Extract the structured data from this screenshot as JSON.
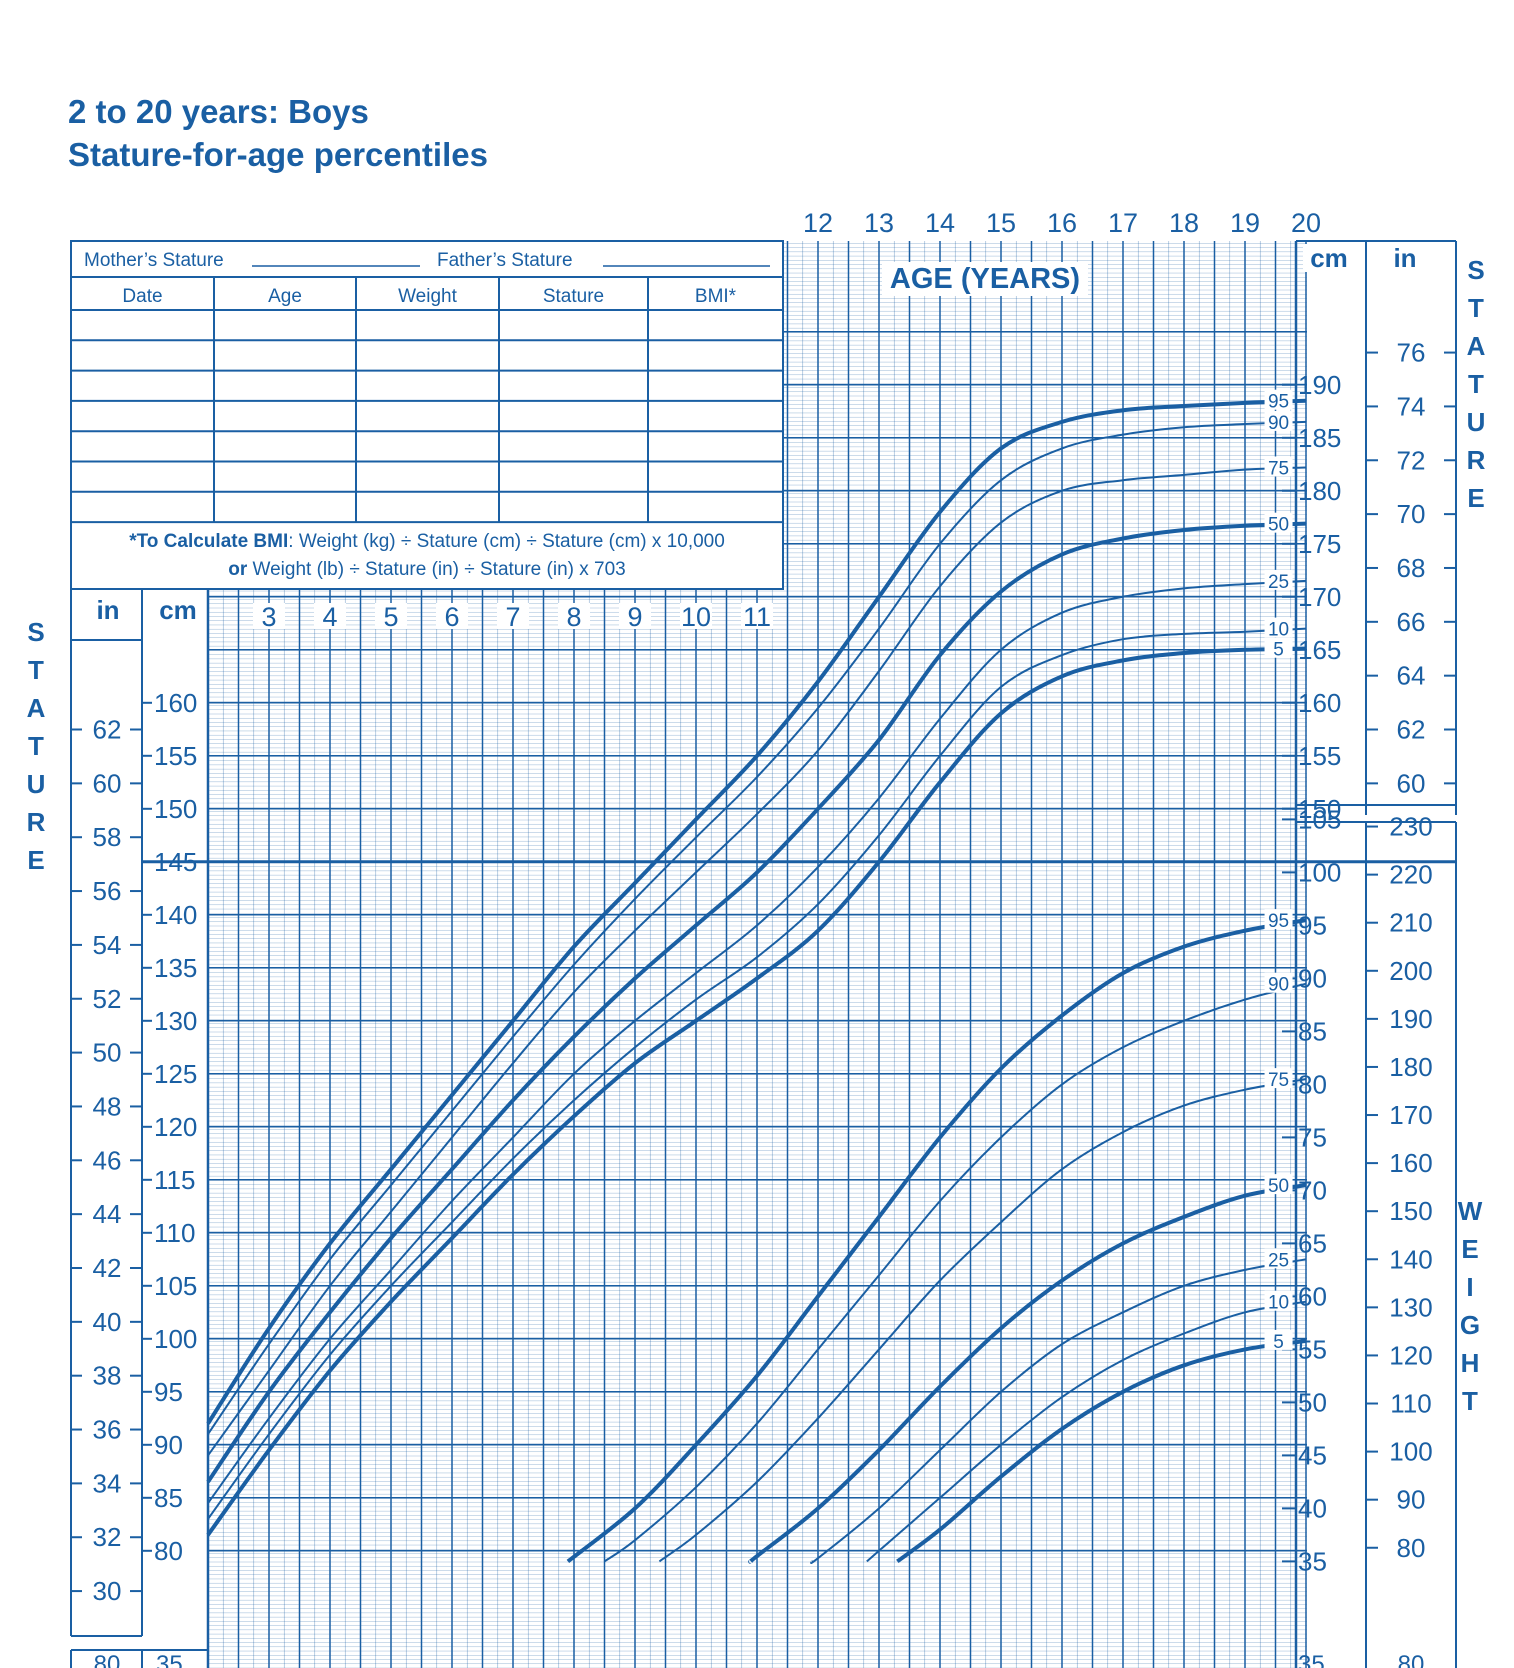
{
  "colors": {
    "primary": "#1a5fa3",
    "background": "#ffffff"
  },
  "title": {
    "line1": "2 to 20 years: Boys",
    "line2": "Stature-for-age percentiles"
  },
  "record_table": {
    "mothers_stature_label": "Mother’s Stature",
    "fathers_stature_label": "Father’s Stature",
    "columns": [
      "Date",
      "Age",
      "Weight",
      "Stature",
      "BMI*"
    ],
    "empty_rows": 7,
    "bmi_note_bold": "*To Calculate BMI",
    "bmi_note_rest": ": Weight (kg) ÷ Stature (cm) ÷ Stature (cm) x 10,000",
    "bmi_note2_bold": "or",
    "bmi_note2_rest": " Weight (lb) ÷ Stature (in) ÷ Stature (in) x 703"
  },
  "axis_labels": {
    "age_title": "AGE (YEARS)",
    "left_stature_vertical": "STATURE",
    "right_stature_vertical": "STATURE",
    "right_weight_vertical": "WEIGHT",
    "unit_in": "in",
    "unit_cm": "cm"
  },
  "chart_data": {
    "type": "line",
    "title": "Stature-for-age percentiles",
    "x_ticks_top": [
      12,
      13,
      14,
      15,
      16,
      17,
      18,
      19,
      20
    ],
    "x_ticks_lower": [
      3,
      4,
      5,
      6,
      7,
      8,
      9,
      10,
      11
    ],
    "xlim": [
      2,
      20
    ],
    "stature": {
      "ylabel": "cm",
      "ylim": [
        77,
        195
      ],
      "cm_ticks_left": [
        160,
        155,
        150,
        145,
        140,
        135,
        130,
        125,
        120,
        115,
        110,
        105,
        100,
        95,
        90,
        85,
        80
      ],
      "cm_ticks_right": [
        190,
        185,
        180,
        175,
        170,
        165,
        160,
        155,
        150
      ],
      "in_ticks_left": [
        62,
        60,
        58,
        56,
        54,
        52,
        50,
        48,
        46,
        44,
        42,
        40,
        38,
        36,
        34,
        32,
        30
      ],
      "in_ticks_right": [
        76,
        74,
        72,
        70,
        68,
        66,
        64,
        62,
        60
      ],
      "series": [
        {
          "name": "95",
          "bold": true,
          "x": [
            2,
            3,
            4,
            5,
            6,
            7,
            8,
            9,
            10,
            11,
            12,
            13,
            14,
            15,
            16,
            17,
            18,
            19,
            20
          ],
          "values": [
            92,
            101,
            109,
            116,
            123,
            130,
            137,
            143,
            149,
            155,
            162,
            170,
            178,
            184,
            186.5,
            187.6,
            188,
            188.3,
            188.5
          ]
        },
        {
          "name": "90",
          "bold": false,
          "x": [
            2,
            3,
            4,
            5,
            6,
            7,
            8,
            9,
            10,
            11,
            12,
            13,
            14,
            15,
            16,
            17,
            18,
            19,
            20
          ],
          "values": [
            91,
            99.5,
            107.5,
            114.5,
            121.5,
            128.5,
            135.3,
            141.5,
            147.3,
            153,
            159.5,
            167,
            175,
            181,
            184,
            185.3,
            186,
            186.3,
            186.5
          ]
        },
        {
          "name": "75",
          "bold": false,
          "x": [
            2,
            3,
            4,
            5,
            6,
            7,
            8,
            9,
            10,
            11,
            12,
            13,
            14,
            15,
            16,
            17,
            18,
            19,
            20
          ],
          "values": [
            89,
            97,
            105,
            112,
            119,
            126,
            132.7,
            138.5,
            144,
            149.5,
            155.5,
            163,
            171,
            177,
            180,
            181,
            181.5,
            182,
            182.2
          ]
        },
        {
          "name": "50",
          "bold": true,
          "x": [
            2,
            3,
            4,
            5,
            6,
            7,
            8,
            9,
            10,
            11,
            12,
            13,
            14,
            15,
            16,
            17,
            18,
            19,
            20
          ],
          "values": [
            86.5,
            95,
            102.5,
            109.5,
            116,
            122.5,
            128.5,
            134,
            139,
            144,
            150,
            156.5,
            164.5,
            170.5,
            174,
            175.5,
            176.3,
            176.7,
            176.9
          ]
        },
        {
          "name": "25",
          "bold": false,
          "x": [
            2,
            3,
            4,
            5,
            6,
            7,
            8,
            9,
            10,
            11,
            12,
            13,
            14,
            15,
            16,
            17,
            18,
            19,
            20
          ],
          "values": [
            84.5,
            92.5,
            100,
            106.5,
            113,
            119,
            125,
            130,
            134.5,
            139,
            144.5,
            151,
            158.5,
            165,
            168.5,
            170,
            170.8,
            171.2,
            171.5
          ]
        },
        {
          "name": "10",
          "bold": false,
          "x": [
            2,
            3,
            4,
            5,
            6,
            7,
            8,
            9,
            10,
            11,
            12,
            13,
            14,
            15,
            16,
            17,
            18,
            19,
            20
          ],
          "values": [
            83,
            91,
            98.5,
            105,
            111,
            117,
            122.5,
            127.5,
            132,
            136,
            141,
            147.5,
            155,
            161.5,
            164.5,
            166,
            166.5,
            166.7,
            167
          ]
        },
        {
          "name": "5",
          "bold": true,
          "x": [
            2,
            3,
            4,
            5,
            6,
            7,
            8,
            9,
            10,
            11,
            12,
            13,
            14,
            15,
            16,
            17,
            18,
            19,
            20
          ],
          "values": [
            81.5,
            89.5,
            97,
            103.5,
            109.5,
            115.5,
            121,
            126,
            130,
            134,
            138.5,
            145,
            152.5,
            159,
            162.5,
            164,
            164.7,
            165,
            165.1
          ]
        }
      ]
    },
    "weight": {
      "ylabel": "kg",
      "ylim": [
        34,
        112
      ],
      "kg_ticks": [
        105,
        100,
        95,
        90,
        85,
        80,
        75,
        70,
        65,
        60,
        55,
        50,
        45,
        40,
        35
      ],
      "lb_ticks": [
        230,
        220,
        210,
        200,
        190,
        180,
        170,
        160,
        150,
        140,
        130,
        120,
        110,
        100,
        90,
        80
      ],
      "series": [
        {
          "name": "95",
          "bold": true,
          "x": [
            7.9,
            9,
            10,
            11,
            12,
            13,
            14,
            15,
            16,
            17,
            18,
            19,
            20
          ],
          "values": [
            35,
            40,
            46,
            52.5,
            60,
            67.5,
            75,
            81.5,
            86.5,
            90.5,
            93,
            94.5,
            95.5
          ]
        },
        {
          "name": "90",
          "bold": false,
          "x": [
            8.5,
            9,
            10,
            11,
            12,
            13,
            14,
            15,
            16,
            17,
            18,
            19,
            20
          ],
          "values": [
            35,
            37,
            42,
            48,
            55,
            62,
            69,
            75,
            80,
            83.5,
            86,
            88,
            89.5
          ]
        },
        {
          "name": "75",
          "bold": false,
          "x": [
            9.4,
            10,
            11,
            12,
            13,
            14,
            15,
            16,
            17,
            18,
            19,
            20
          ],
          "values": [
            35,
            37.5,
            42.5,
            48.5,
            55,
            61.5,
            67,
            72,
            75.5,
            78,
            79.5,
            80.5
          ]
        },
        {
          "name": "50",
          "bold": true,
          "x": [
            10.9,
            11,
            12,
            13,
            14,
            15,
            16,
            17,
            18,
            19,
            20
          ],
          "values": [
            35,
            35.5,
            40,
            45.5,
            51.5,
            57,
            61.5,
            65,
            67.5,
            69.5,
            70.5
          ]
        },
        {
          "name": "25",
          "bold": false,
          "x": [
            11.9,
            12,
            13,
            14,
            15,
            16,
            17,
            18,
            19,
            20
          ],
          "values": [
            35,
            35.3,
            40,
            45.5,
            51,
            55.5,
            58.5,
            61,
            62.5,
            63.5
          ]
        },
        {
          "name": "10",
          "bold": false,
          "x": [
            12.8,
            13,
            14,
            15,
            16,
            17,
            18,
            19,
            20
          ],
          "values": [
            35,
            36,
            41,
            46,
            50.5,
            54,
            56.5,
            58.5,
            59.5
          ]
        },
        {
          "name": "5",
          "bold": true,
          "x": [
            13.3,
            14,
            15,
            16,
            17,
            18,
            19,
            20
          ],
          "values": [
            35,
            38,
            43,
            47.5,
            51,
            53.5,
            55,
            55.8
          ]
        }
      ]
    },
    "lower_left_ticks": {
      "in": "80",
      "cm": "35"
    },
    "lower_right_ticks": {
      "kg": "35",
      "lb": "80"
    }
  }
}
